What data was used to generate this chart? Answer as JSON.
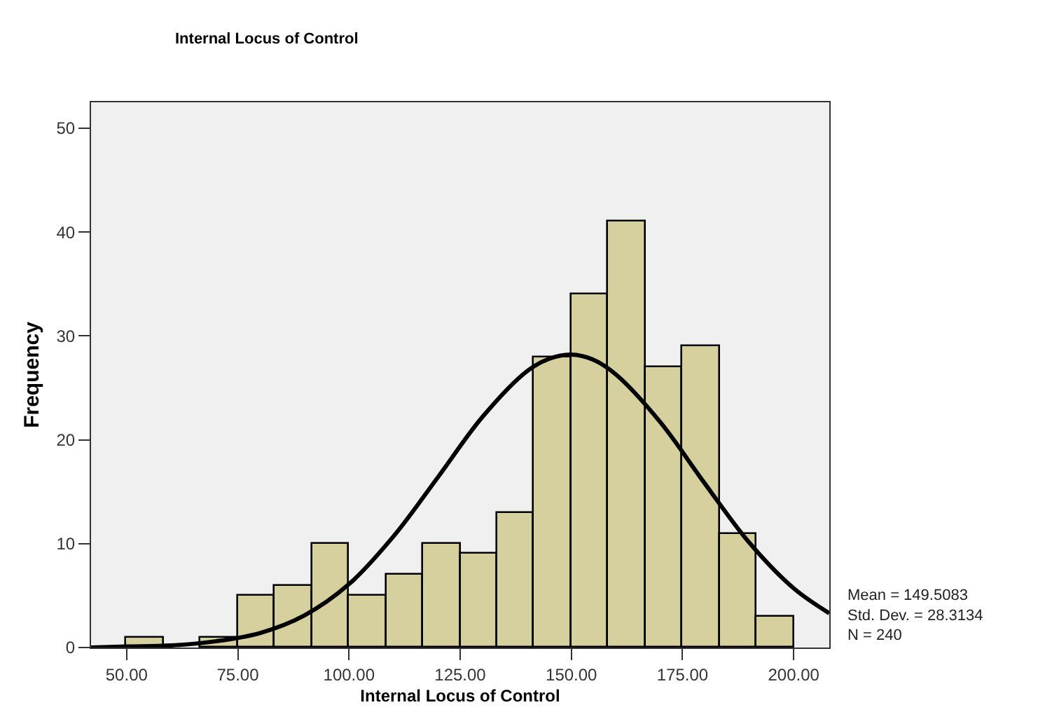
{
  "chart_data": {
    "type": "histogram",
    "title": "Internal Locus of Control",
    "xlabel": "Internal Locus of Control",
    "ylabel": "Frequency",
    "bins": [
      50,
      58.33,
      66.67,
      75,
      83.33,
      91.67,
      100,
      108.33,
      116.67,
      125,
      133.33,
      141.67,
      150,
      158.33,
      166.67,
      175,
      183.33,
      191.67,
      200
    ],
    "values": [
      1,
      0,
      1,
      5,
      6,
      10,
      5,
      7,
      10,
      9,
      13,
      28,
      34,
      41,
      27,
      29,
      11,
      3
    ],
    "color": "#d6d09e",
    "series": [
      {
        "type": "line",
        "color": "#000000",
        "x": [
          42,
          50,
          60,
          70,
          80,
          90,
          100,
          110,
          120,
          130,
          140,
          145,
          150,
          155,
          160,
          170,
          180,
          190,
          200,
          208
        ],
        "values": [
          0.0,
          0.1,
          0.2,
          0.6,
          1.4,
          3.1,
          6.1,
          10.7,
          16.4,
          22.2,
          26.6,
          27.8,
          28.2,
          27.7,
          26.3,
          21.7,
          15.8,
          10.1,
          5.7,
          3.3
        ]
      }
    ],
    "xlim": [
      42,
      208
    ],
    "ylim": [
      0,
      52.5
    ],
    "xticks": [
      {
        "value": 50,
        "label": "50.00"
      },
      {
        "value": 75,
        "label": "75.00"
      },
      {
        "value": 100,
        "label": "100.00"
      },
      {
        "value": 125,
        "label": "125.00"
      },
      {
        "value": 150,
        "label": "150.00"
      },
      {
        "value": 175,
        "label": "175.00"
      },
      {
        "value": 200,
        "label": "200.00"
      }
    ],
    "yticks": [
      0,
      10,
      20,
      30,
      40,
      50
    ],
    "annotations": [
      "Mean = 149.5083\nStd. Dev. = 28.3134\nN = 240"
    ],
    "grid": false
  }
}
